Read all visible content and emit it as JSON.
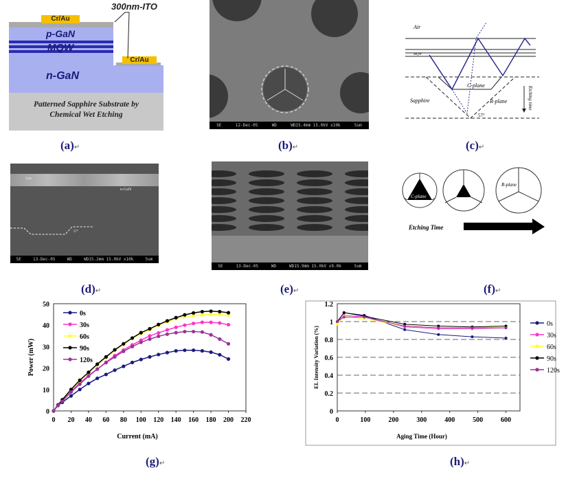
{
  "panel_labels": [
    "(a)",
    "(b)",
    "(c)",
    "(d)",
    "(e)",
    "(f)",
    "(g)",
    "(h)"
  ],
  "panel_a": {
    "ito": "300nm-ITO",
    "contact_top": "Cr/Au",
    "contact_n": "Cr/Au",
    "p_layer": "p-GaN",
    "mqw": "MQW",
    "n_layer": "n-GaN",
    "substrate_line1": "Patterned Sapphire Substrate by",
    "substrate_line2": "Chemical Wet Etching"
  },
  "panel_b": {
    "sem_bar": [
      "SE",
      "12-Dec-05",
      "WD",
      "WD15.4mm 15.0kV x10k",
      "5um"
    ]
  },
  "panel_c": {
    "air": "Air",
    "mqw": "MQW",
    "sapphire": "Sapphire",
    "c_plane": "C-plane",
    "r_plane": "R-plane",
    "angle": "57°",
    "etching_time": "Etching time"
  },
  "panel_d": {
    "sem_bar": [
      "SE",
      "13-Dec-05",
      "WD",
      "WD15.2mm 15.0kV x10k",
      "5um"
    ],
    "thickness": "5um",
    "layer": "n-GaN",
    "angle": "57°"
  },
  "panel_e": {
    "sem_bar": [
      "SE",
      "13-Dec-05",
      "WD",
      "WD15.9mm 15.0kV x9.0k",
      "5um"
    ]
  },
  "panel_f": {
    "c_plane": "C-plane",
    "r_plane": "R-plane",
    "etching_time": "Etching Time"
  },
  "colors": {
    "0s": "#1a1a80",
    "30s": "#ff33cc",
    "60s": "#ffff33",
    "90s": "#000000",
    "120s": "#993399"
  },
  "chart_data": [
    {
      "type": "line",
      "xlabel": "Current (mA)",
      "ylabel": "Power (mW)",
      "xlim": [
        0,
        220
      ],
      "ylim": [
        0,
        50
      ],
      "xticks": [
        0,
        20,
        40,
        60,
        80,
        100,
        120,
        140,
        160,
        180,
        200,
        220
      ],
      "yticks": [
        0,
        10,
        20,
        30,
        40,
        50
      ],
      "legend": "top-left",
      "x": [
        0,
        5,
        10,
        20,
        30,
        40,
        50,
        60,
        70,
        80,
        90,
        100,
        110,
        120,
        130,
        140,
        150,
        160,
        170,
        180,
        190,
        200
      ],
      "series": [
        {
          "name": "0s",
          "color": "#1a1a80",
          "values": [
            0,
            2.5,
            4,
            7,
            10,
            12.8,
            15.2,
            17,
            19,
            20.8,
            22.6,
            24,
            25.2,
            26.3,
            27.2,
            28,
            28.3,
            28.3,
            28,
            27.4,
            26.2,
            24.2
          ]
        },
        {
          "name": "30s",
          "color": "#ff33cc",
          "values": [
            0,
            2.7,
            4.8,
            9,
            13,
            16.5,
            19.5,
            22.7,
            25.8,
            28.4,
            30.8,
            33,
            35,
            36.4,
            37.8,
            39,
            40,
            40.8,
            41.3,
            41.3,
            41,
            40.2
          ]
        },
        {
          "name": "60s",
          "color": "#ffff33",
          "values": [
            0,
            2.8,
            5,
            9.8,
            14,
            17.8,
            21.5,
            25,
            28.2,
            31,
            33.8,
            36,
            38,
            40,
            41.5,
            43,
            44,
            44.5,
            44.8,
            45,
            45,
            44.6
          ]
        },
        {
          "name": "90s",
          "color": "#000000",
          "values": [
            0,
            2.8,
            5.2,
            10,
            14.3,
            18,
            21.8,
            25.2,
            28.5,
            31.3,
            34,
            36.5,
            38.3,
            40.3,
            42,
            43.5,
            44.8,
            45.7,
            46.3,
            46.5,
            46.3,
            45.8
          ]
        },
        {
          "name": "120s",
          "color": "#993399",
          "values": [
            0,
            2.6,
            4.5,
            8.8,
            12.5,
            16.2,
            19.5,
            22.5,
            25.2,
            27.8,
            30,
            32,
            33.5,
            34.8,
            35.8,
            36.5,
            37,
            37,
            36.8,
            35.5,
            33.5,
            31.3
          ]
        }
      ]
    },
    {
      "type": "line",
      "xlabel": "Aging Time (Hour)",
      "ylabel": "EL Intensity Variation (%)",
      "xlim": [
        0,
        650
      ],
      "ylim": [
        0,
        1.2
      ],
      "xticks": [
        0,
        100,
        200,
        300,
        400,
        500,
        600
      ],
      "yticks": [
        0,
        0.2,
        0.4,
        0.6,
        0.8,
        1,
        1.2
      ],
      "grid": "dashed horizontal",
      "legend": "right",
      "x": [
        0,
        24,
        96,
        240,
        360,
        480,
        600
      ],
      "series": [
        {
          "name": "0s",
          "color": "#1a1a80",
          "values": [
            1,
            1.1,
            1.07,
            0.91,
            0.855,
            0.83,
            0.815
          ]
        },
        {
          "name": "30s",
          "color": "#ff33cc",
          "values": [
            1,
            1.07,
            1.05,
            0.94,
            0.92,
            0.92,
            0.93
          ]
        },
        {
          "name": "60s",
          "color": "#ffff33",
          "values": [
            0.97,
            1.06,
            1.03,
            0.95,
            0.93,
            0.93,
            0.95
          ]
        },
        {
          "name": "90s",
          "color": "#000000",
          "values": [
            1,
            1.1,
            1.06,
            0.97,
            0.95,
            0.94,
            0.95
          ]
        },
        {
          "name": "120s",
          "color": "#993399",
          "values": [
            1,
            1.05,
            1.05,
            0.95,
            0.93,
            0.93,
            0.93
          ]
        }
      ]
    }
  ]
}
